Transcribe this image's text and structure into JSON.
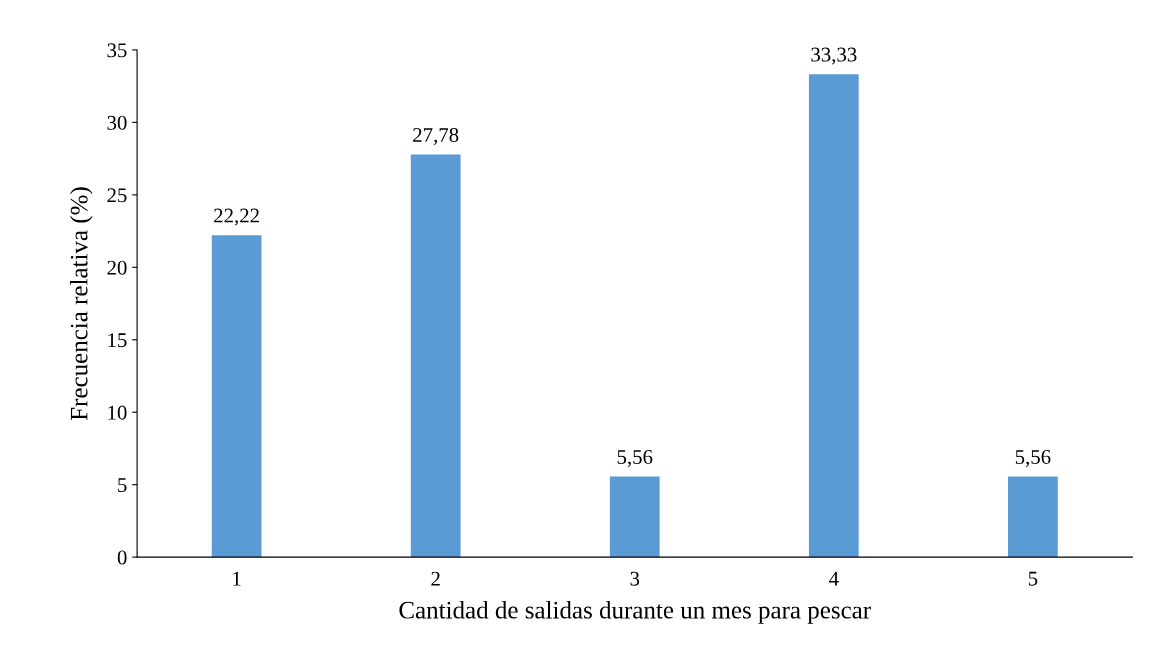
{
  "chart_data": {
    "type": "bar",
    "xlabel": "Cantidad de salidas durante un mes para pescar",
    "ylabel": "Frecuencia relativa (%)",
    "categories": [
      "1",
      "2",
      "3",
      "4",
      "5"
    ],
    "values": [
      22.22,
      27.78,
      5.56,
      33.33,
      5.56
    ],
    "value_labels": [
      "22,22",
      "27,78",
      "5,56",
      "33,33",
      "5,56"
    ],
    "color": "#5b9bd5",
    "ylim": [
      0,
      35
    ],
    "yticks": [
      0,
      5,
      10,
      15,
      20,
      25,
      30,
      35
    ],
    "grid": false
  }
}
